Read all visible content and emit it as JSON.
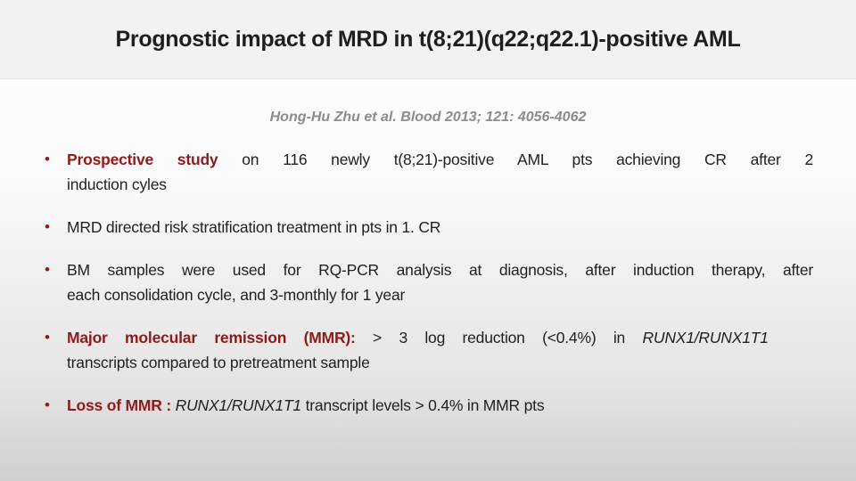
{
  "slide": {
    "title": "Prognostic impact of MRD in t(8;21)(q22;q22.1)-positive AML",
    "citation": "Hong-Hu Zhu et al. Blood 2013; 121: 4056-4062",
    "bullet_glyph": "•",
    "bullets": [
      {
        "segments": [
          {
            "text": "Prospective study",
            "style": "accent"
          },
          {
            "text": " on 116 newly t(8;21)-positive AML pts achieving CR after 2",
            "style": "plain"
          },
          {
            "text": "induction cyles",
            "style": "plain"
          }
        ]
      },
      {
        "segments": [
          {
            "text": "MRD directed risk stratification treatment in pts in 1. CR",
            "style": "plain"
          }
        ]
      },
      {
        "segments": [
          {
            "text": "BM samples were used for RQ-PCR analysis at diagnosis, after induction therapy, after",
            "style": "plain"
          },
          {
            "text": "each consolidation cycle, and 3-monthly for 1 year",
            "style": "plain"
          }
        ]
      },
      {
        "segments": [
          {
            "text": "Major molecular remission (MMR):",
            "style": "accent"
          },
          {
            "text": " > 3 log reduction (<0.4%) in ",
            "style": "plain"
          },
          {
            "text": "RUNX1/RUNX1T1",
            "style": "italic"
          },
          {
            "text": "transcripts compared to pretreatment sample",
            "style": "plain"
          }
        ]
      },
      {
        "segments": [
          {
            "text": "Loss of MMR : ",
            "style": "accent"
          },
          {
            "text": "RUNX1/RUNX1T1",
            "style": "italic"
          },
          {
            "text": " transcript levels > 0.4% in MMR pts",
            "style": "plain"
          }
        ]
      }
    ]
  },
  "colors": {
    "accent_red": "#8e1b1b",
    "header_bg": "#f1f1f1",
    "body_top": "#fefefe",
    "body_bottom": "#d0d0d0",
    "title_color": "#1f1f1f",
    "text_color": "#212121",
    "citation_color": "#8c8c8c"
  }
}
